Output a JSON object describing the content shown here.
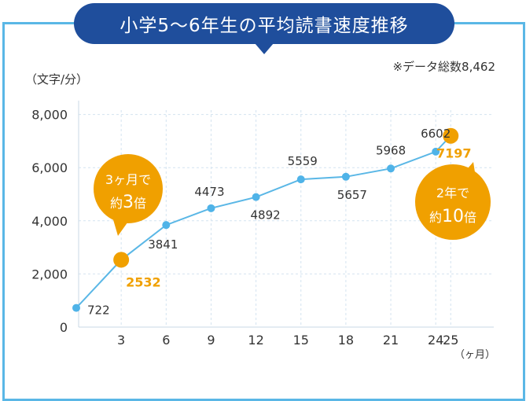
{
  "chart_data": {
    "type": "line",
    "title": "小学5〜6年生の平均読書速度推移",
    "note": "※データ総数8,462",
    "ylabel": "（文字/分）",
    "xunit": "（ヶ月）",
    "x": [
      0,
      3,
      6,
      9,
      12,
      15,
      18,
      21,
      24,
      25
    ],
    "values": [
      722,
      2532,
      3841,
      4473,
      4892,
      5559,
      5657,
      5968,
      6602,
      7197
    ],
    "point_labels": [
      "722",
      "2532",
      "3841",
      "4473",
      "4892",
      "5559",
      "5657",
      "5968",
      "6602",
      "7197"
    ],
    "x_tick_labels": [
      "3",
      "6",
      "9",
      "12",
      "15",
      "18",
      "21",
      "24",
      "25"
    ],
    "y_ticks": [
      0,
      2000,
      4000,
      6000,
      8000
    ],
    "y_tick_labels": [
      "0",
      "2,000",
      "4,000",
      "6,000",
      "8,000"
    ],
    "ylim": [
      0,
      8000
    ],
    "grid": true,
    "highlight_indices": [
      1,
      9
    ],
    "colors": {
      "line": "#5ab7e6",
      "point": "#4fb3e8",
      "highlight": "#f0a000",
      "title_bg": "#1f4e9c",
      "frame": "#5ab7e6",
      "grid": "#d4e3f0",
      "text": "#333333"
    }
  },
  "callouts": {
    "three_month": {
      "line1": "3ヶ月で",
      "line2_prefix": "約",
      "line2_num": "3",
      "line2_suffix": "倍"
    },
    "two_year": {
      "line1": "2年で",
      "line2_prefix": "約",
      "line2_num": "10",
      "line2_suffix": "倍"
    }
  }
}
